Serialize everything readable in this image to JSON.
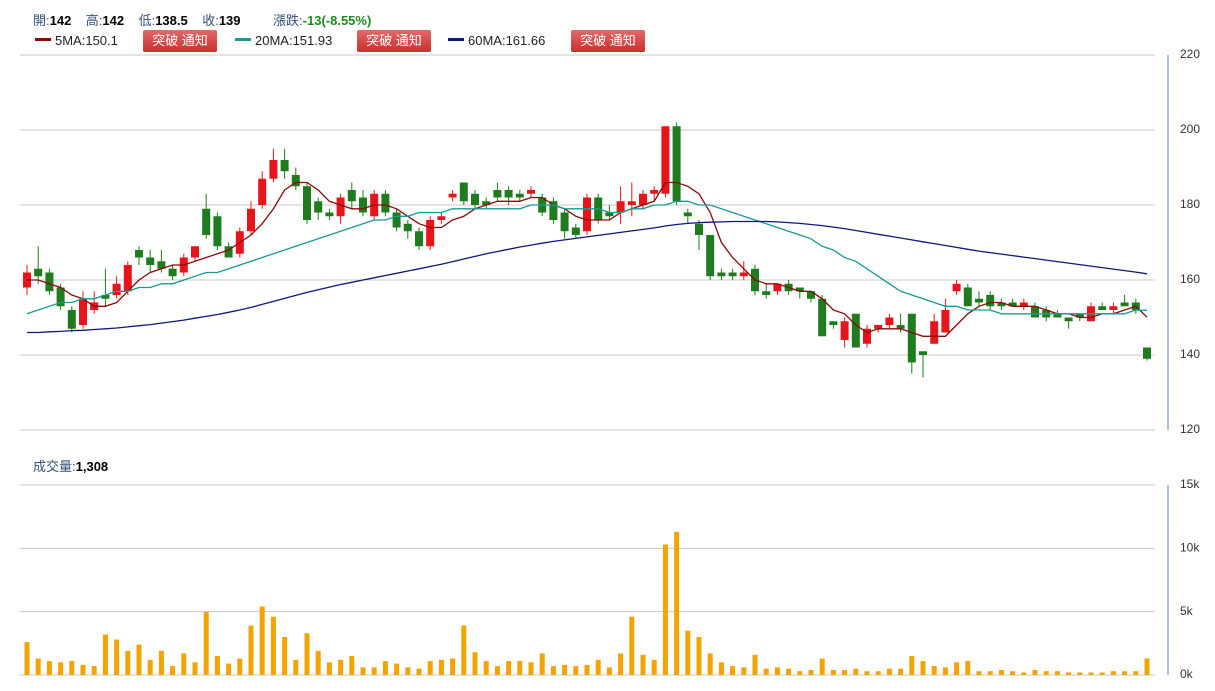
{
  "header": {
    "items": [
      {
        "label": "開:",
        "value": "142"
      },
      {
        "label": "高:",
        "value": "142"
      },
      {
        "label": "低:",
        "value": "138.5"
      },
      {
        "label": "收:",
        "value": "139"
      },
      {
        "label": "漲跌:",
        "value": "-13(-8.55%)"
      }
    ],
    "button": "突破 通知"
  },
  "chart_data": [
    {
      "type": "candlestick",
      "up_color": "#e8141b",
      "down_color": "#1e7b1e",
      "grid": true,
      "ylim": [
        120,
        220
      ],
      "yticks": [
        120,
        140,
        160,
        180,
        200,
        220
      ],
      "open": [
        158,
        163,
        162,
        158,
        152,
        148,
        152,
        156,
        156,
        157,
        168,
        166,
        165,
        163,
        162,
        166,
        179,
        177,
        169,
        167,
        173,
        180,
        187,
        192,
        188,
        185,
        181,
        178,
        177,
        184,
        182,
        177,
        183,
        178,
        175,
        173,
        169,
        176,
        182,
        186,
        183,
        181,
        184,
        184,
        183,
        183,
        182,
        181,
        178,
        174,
        173,
        182,
        178,
        178,
        180,
        180,
        183,
        183,
        201,
        178,
        175,
        172,
        162,
        162,
        161,
        163,
        157,
        157,
        159,
        158,
        157,
        155,
        149,
        144,
        151,
        143,
        147,
        148,
        148,
        151,
        141,
        143,
        146,
        157,
        158,
        155,
        156,
        154,
        154,
        153,
        153,
        152,
        151,
        150,
        151,
        149,
        153,
        152,
        154,
        154,
        142
      ],
      "high": [
        164,
        169,
        163,
        159,
        153,
        157,
        157,
        163,
        161,
        165,
        169,
        168,
        168,
        164,
        167,
        169,
        183,
        178,
        170,
        174,
        181,
        189,
        195,
        195,
        190,
        186,
        182,
        179,
        183,
        186,
        184,
        184,
        184,
        179,
        176,
        174,
        177,
        178,
        184,
        186,
        184,
        182,
        186,
        185,
        184,
        185,
        183,
        182,
        179,
        175,
        183,
        183,
        180,
        185,
        186,
        184,
        185,
        201,
        202,
        179,
        176,
        172,
        163,
        163,
        165,
        164,
        159,
        159,
        160,
        158,
        157,
        156,
        149,
        150,
        151,
        148,
        148,
        151,
        151,
        151,
        141,
        151,
        155,
        160,
        159,
        157,
        157,
        155,
        155,
        155,
        154,
        153,
        152,
        150,
        151,
        154,
        154,
        154,
        156,
        155,
        142
      ],
      "low": [
        156,
        159,
        156,
        152,
        146,
        147,
        151,
        153,
        155,
        156,
        164,
        162,
        162,
        160,
        161,
        165,
        171,
        168,
        166,
        166,
        172,
        179,
        186,
        187,
        184,
        175,
        176,
        176,
        175,
        179,
        177,
        176,
        177,
        173,
        171,
        168,
        168,
        175,
        181,
        180,
        179,
        179,
        181,
        180,
        181,
        182,
        177,
        175,
        171,
        171,
        172,
        175,
        176,
        175,
        177,
        179,
        181,
        182,
        180,
        175,
        168,
        160,
        160,
        160,
        160,
        156,
        155,
        156,
        156,
        155,
        154,
        145,
        147,
        142,
        142,
        142,
        146,
        147,
        146,
        135,
        134,
        143,
        146,
        156,
        153,
        153,
        152,
        152,
        153,
        152,
        150,
        149,
        150,
        147,
        149,
        149,
        152,
        151,
        153,
        151,
        138.5
      ],
      "close": [
        162,
        161,
        157,
        153,
        147,
        155,
        154,
        155,
        159,
        164,
        166,
        164,
        163,
        161,
        166,
        169,
        172,
        169,
        166,
        173,
        179,
        187,
        192,
        189,
        185,
        176,
        178,
        177,
        182,
        181,
        178,
        183,
        178,
        174,
        173,
        169,
        176,
        177,
        183,
        181,
        180,
        180,
        182,
        182,
        182,
        184,
        178,
        176,
        173,
        172,
        182,
        176,
        177,
        181,
        181,
        183,
        184,
        201,
        181,
        177,
        172,
        161,
        161,
        161,
        162,
        157,
        156,
        159,
        157,
        157,
        155,
        145,
        148,
        149,
        142,
        147,
        148,
        150,
        147,
        138,
        140,
        149,
        152,
        159,
        153,
        154,
        153,
        153,
        153,
        154,
        150,
        150,
        150,
        149,
        150,
        153,
        152,
        153,
        153,
        152,
        139
      ],
      "series": [
        {
          "name": "5MA",
          "legend_label": "5MA:150.1",
          "color": "#8b0a0a",
          "values": [
            160,
            160,
            159,
            158,
            156,
            155,
            153,
            153,
            154,
            157,
            160,
            162,
            163,
            164,
            164,
            165,
            166,
            167,
            168,
            170,
            172,
            175,
            179,
            184,
            186,
            186,
            184,
            181,
            180,
            179,
            179,
            180,
            180,
            179,
            177,
            175,
            174,
            174,
            176,
            177,
            179,
            180,
            181,
            181,
            181,
            182,
            182,
            180,
            179,
            177,
            176,
            176,
            176,
            178,
            179,
            180,
            181,
            186,
            186,
            185,
            183,
            178,
            170,
            166,
            163,
            160,
            159,
            159,
            158,
            157,
            157,
            155,
            152,
            151,
            148,
            146,
            147,
            147,
            147,
            146,
            145,
            145,
            145,
            148,
            151,
            153,
            154,
            154,
            153,
            153,
            153,
            152,
            151,
            151,
            150,
            150,
            151,
            151,
            152,
            153,
            150.1
          ]
        },
        {
          "name": "20MA",
          "legend_label": "20MA:151.93",
          "color": "#1a9a94",
          "values": [
            151,
            152,
            153,
            154,
            154,
            155,
            155,
            156,
            157,
            157,
            158,
            158,
            159,
            159,
            160,
            161,
            162,
            162,
            163,
            164,
            165,
            166,
            167,
            168,
            169,
            170,
            171,
            172,
            173,
            174,
            175,
            176,
            176,
            177,
            177,
            178,
            178,
            178,
            179,
            179,
            179,
            179,
            179,
            179,
            179,
            180,
            180,
            180,
            179,
            179,
            179,
            179,
            178,
            178,
            179,
            179,
            180,
            180,
            181,
            181,
            180,
            180,
            179,
            178,
            177,
            176,
            175,
            174,
            173,
            172,
            171,
            169,
            168,
            166,
            165,
            163,
            161,
            159,
            157,
            156,
            155,
            154,
            153,
            153,
            152,
            152,
            152,
            151,
            151,
            151,
            151,
            151,
            151,
            151,
            151,
            151,
            151,
            151,
            151,
            152,
            151.93
          ]
        },
        {
          "name": "60MA",
          "legend_label": "60MA:161.66",
          "color": "#0d1a7a",
          "values": [
            146,
            146,
            146.2,
            146.3,
            146.5,
            146.6,
            146.8,
            147,
            147.2,
            147.5,
            147.8,
            148.1,
            148.5,
            148.9,
            149.3,
            149.8,
            150.3,
            150.8,
            151.4,
            152,
            152.7,
            153.5,
            154.3,
            155.1,
            155.9,
            156.7,
            157.4,
            158.1,
            158.8,
            159.4,
            160,
            160.6,
            161.2,
            161.8,
            162.4,
            163,
            163.6,
            164.2,
            164.9,
            165.6,
            166.3,
            167,
            167.6,
            168.2,
            168.8,
            169.3,
            169.8,
            170.3,
            170.7,
            171.1,
            171.5,
            171.9,
            172.3,
            172.7,
            173.1,
            173.5,
            173.9,
            174.4,
            174.8,
            175.1,
            175.3,
            175.4,
            175.5,
            175.6,
            175.6,
            175.6,
            175.6,
            175.5,
            175.3,
            175.1,
            174.8,
            174.5,
            174.1,
            173.7,
            173.2,
            172.7,
            172.2,
            171.7,
            171.2,
            170.7,
            170.2,
            169.7,
            169.2,
            168.7,
            168.2,
            167.7,
            167.3,
            166.9,
            166.5,
            166.1,
            165.7,
            165.3,
            164.9,
            164.5,
            164.1,
            163.7,
            163.3,
            162.9,
            162.5,
            162.1,
            161.66
          ]
        }
      ]
    },
    {
      "type": "bar",
      "title": "成交量:",
      "title_value": "1,308",
      "color": "#f5a300",
      "grid": true,
      "ylim": [
        0,
        15000
      ],
      "yticks": [
        {
          "value": 0,
          "label": "0k"
        },
        {
          "value": 5000,
          "label": "5k"
        },
        {
          "value": 10000,
          "label": "10k"
        },
        {
          "value": 15000,
          "label": "15k"
        }
      ],
      "values": [
        2600,
        1300,
        1100,
        1000,
        1100,
        800,
        700,
        3200,
        2800,
        1900,
        2400,
        1200,
        1900,
        700,
        1700,
        1000,
        5000,
        1500,
        900,
        1300,
        3900,
        5400,
        4600,
        3000,
        1200,
        3300,
        1900,
        1000,
        1200,
        1500,
        600,
        600,
        1100,
        900,
        600,
        500,
        1100,
        1200,
        1300,
        3900,
        1800,
        1100,
        700,
        1100,
        1100,
        1000,
        1700,
        700,
        800,
        700,
        800,
        1200,
        600,
        1700,
        4600,
        1600,
        1200,
        10300,
        11300,
        3500,
        3000,
        1700,
        1000,
        700,
        600,
        1600,
        500,
        600,
        500,
        300,
        400,
        1300,
        400,
        400,
        500,
        300,
        300,
        500,
        500,
        1500,
        1100,
        700,
        600,
        1000,
        1100,
        300,
        300,
        400,
        300,
        200,
        400,
        300,
        300,
        200,
        200,
        200,
        200,
        300,
        300,
        300,
        1308
      ]
    }
  ]
}
